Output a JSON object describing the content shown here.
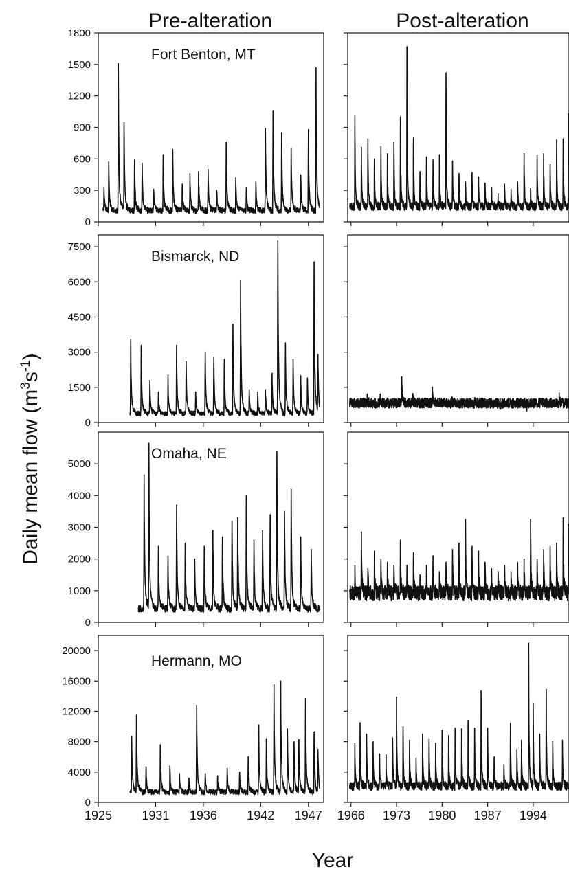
{
  "chart_data": {
    "type": "line",
    "column_titles": [
      "Pre-alteration",
      "Post-alteration"
    ],
    "xlabel": "Year",
    "ylabel": "Daily mean flow (m3s-1)",
    "ylabel_parts": {
      "main": "Daily mean flow (m",
      "sup1": "3",
      "mid": "s",
      "sup2": "-1",
      "end": ")"
    },
    "x_axes": {
      "pre": {
        "range": [
          1925,
          1948.6
        ],
        "ticks": [
          1925,
          1931,
          1936,
          1942,
          1947
        ],
        "tick_labels": [
          "1925",
          "1931",
          "1936",
          "1942",
          "1947"
        ]
      },
      "post": {
        "range": [
          1965.5,
          1999.5
        ],
        "ticks": [
          1966,
          1973,
          1980,
          1987,
          1994
        ],
        "tick_labels": [
          "1966",
          "1973",
          "1980",
          "1987",
          "1994"
        ]
      }
    },
    "panels": [
      {
        "station": "Fort Benton, MT",
        "ylim": [
          0,
          1800
        ],
        "y_ticks": [
          0,
          300,
          600,
          900,
          1200,
          1500,
          1800
        ],
        "y_tick_labels": [
          "0",
          "300",
          "600",
          "900",
          "1200",
          "1500",
          "1800"
        ],
        "pre": {
          "start": 1925.5,
          "end": 1948.2,
          "base": 110,
          "peaks": [
            [
              1925.6,
              330
            ],
            [
              1926.1,
              570
            ],
            [
              1927.1,
              1510
            ],
            [
              1927.7,
              950
            ],
            [
              1928.8,
              590
            ],
            [
              1929.6,
              560
            ],
            [
              1930.8,
              310
            ],
            [
              1931.8,
              640
            ],
            [
              1932.8,
              690
            ],
            [
              1933.8,
              360
            ],
            [
              1934.6,
              460
            ],
            [
              1935.5,
              480
            ],
            [
              1936.5,
              500
            ],
            [
              1937.4,
              300
            ],
            [
              1938.4,
              760
            ],
            [
              1939.4,
              420
            ],
            [
              1940.5,
              330
            ],
            [
              1941.5,
              380
            ],
            [
              1942.5,
              890
            ],
            [
              1943.3,
              1060
            ],
            [
              1944.2,
              850
            ],
            [
              1945.2,
              700
            ],
            [
              1946.2,
              450
            ],
            [
              1947.0,
              880
            ],
            [
              1947.8,
              1470
            ]
          ]
        },
        "post": {
          "start": 1965.8,
          "end": 1999.5,
          "base": 150,
          "peaks": [
            [
              1966.6,
              1010
            ],
            [
              1967.6,
              710
            ],
            [
              1968.6,
              790
            ],
            [
              1969.6,
              600
            ],
            [
              1970.6,
              720
            ],
            [
              1971.6,
              650
            ],
            [
              1972.6,
              760
            ],
            [
              1973.6,
              1000
            ],
            [
              1974.6,
              1670
            ],
            [
              1975.6,
              800
            ],
            [
              1976.6,
              480
            ],
            [
              1977.6,
              620
            ],
            [
              1978.6,
              590
            ],
            [
              1979.6,
              640
            ],
            [
              1980.6,
              1420
            ],
            [
              1981.6,
              580
            ],
            [
              1982.6,
              460
            ],
            [
              1983.6,
              380
            ],
            [
              1984.6,
              470
            ],
            [
              1985.6,
              430
            ],
            [
              1986.6,
              370
            ],
            [
              1987.6,
              330
            ],
            [
              1988.6,
              270
            ],
            [
              1989.6,
              360
            ],
            [
              1990.6,
              310
            ],
            [
              1991.6,
              380
            ],
            [
              1992.6,
              650
            ],
            [
              1993.6,
              320
            ],
            [
              1994.6,
              640
            ],
            [
              1995.6,
              650
            ],
            [
              1996.6,
              550
            ],
            [
              1997.6,
              780
            ],
            [
              1998.6,
              790
            ],
            [
              1999.4,
              1030
            ]
          ]
        }
      },
      {
        "station": "Bismarck, ND",
        "ylim": [
          0,
          8000
        ],
        "y_ticks": [
          0,
          1500,
          3000,
          4500,
          6000,
          7500
        ],
        "y_tick_labels": [
          "0",
          "1500",
          "3000",
          "4500",
          "6000",
          "7500"
        ],
        "pre": {
          "start": 1928.3,
          "end": 1948.2,
          "base": 400,
          "peaks": [
            [
              1928.4,
              3550
            ],
            [
              1929.5,
              3300
            ],
            [
              1930.4,
              1800
            ],
            [
              1931.3,
              1300
            ],
            [
              1932.3,
              2000
            ],
            [
              1933.2,
              3300
            ],
            [
              1934.2,
              2600
            ],
            [
              1935.2,
              1300
            ],
            [
              1936.2,
              3000
            ],
            [
              1937.1,
              2800
            ],
            [
              1938.2,
              2700
            ],
            [
              1939.1,
              4200
            ],
            [
              1939.9,
              6050
            ],
            [
              1940.8,
              1400
            ],
            [
              1941.7,
              1300
            ],
            [
              1942.5,
              1400
            ],
            [
              1943.2,
              2100
            ],
            [
              1943.8,
              7750
            ],
            [
              1944.6,
              3400
            ],
            [
              1945.4,
              2700
            ],
            [
              1946.2,
              2000
            ],
            [
              1946.9,
              1900
            ],
            [
              1947.6,
              6850
            ],
            [
              1948.0,
              2900
            ]
          ]
        },
        "post": {
          "start": 1965.8,
          "end": 1999.5,
          "base": 850,
          "peaks": [
            [
              1968.5,
              1100
            ],
            [
              1970.5,
              1200
            ],
            [
              1973.8,
              1950
            ],
            [
              1975.5,
              1150
            ],
            [
              1978.5,
              1500
            ],
            [
              1981.5,
              950
            ],
            [
              1985.0,
              1000
            ],
            [
              1989.0,
              800
            ],
            [
              1993.0,
              700
            ],
            [
              1998.0,
              1200
            ]
          ]
        }
      },
      {
        "station": "Omaha, NE",
        "ylim": [
          0,
          6000
        ],
        "y_ticks": [
          0,
          1000,
          2000,
          3000,
          4000,
          5000
        ],
        "y_tick_labels": [
          "0",
          "1000",
          "2000",
          "3000",
          "4000",
          "5000"
        ],
        "pre": {
          "start": 1929.2,
          "end": 1948.2,
          "base": 450,
          "peaks": [
            [
              1929.8,
              4650
            ],
            [
              1930.3,
              5650
            ],
            [
              1931.3,
              2400
            ],
            [
              1932.3,
              2100
            ],
            [
              1933.2,
              3700
            ],
            [
              1934.1,
              2500
            ],
            [
              1935.1,
              2000
            ],
            [
              1936.1,
              2400
            ],
            [
              1937.0,
              2900
            ],
            [
              1938.0,
              2700
            ],
            [
              1939.0,
              3200
            ],
            [
              1939.6,
              3300
            ],
            [
              1940.5,
              4000
            ],
            [
              1941.3,
              2600
            ],
            [
              1942.2,
              2900
            ],
            [
              1943.0,
              3400
            ],
            [
              1943.7,
              5400
            ],
            [
              1944.5,
              3500
            ],
            [
              1945.2,
              4200
            ],
            [
              1946.2,
              2700
            ],
            [
              1947.3,
              2300
            ]
          ]
        },
        "post": {
          "start": 1965.8,
          "end": 1999.5,
          "base": 950,
          "peaks": [
            [
              1966.6,
              1800
            ],
            [
              1967.6,
              2850
            ],
            [
              1968.6,
              1700
            ],
            [
              1969.6,
              2250
            ],
            [
              1970.6,
              2000
            ],
            [
              1971.6,
              1900
            ],
            [
              1972.6,
              1800
            ],
            [
              1973.6,
              2600
            ],
            [
              1974.6,
              1800
            ],
            [
              1975.6,
              2200
            ],
            [
              1976.6,
              1500
            ],
            [
              1977.6,
              1800
            ],
            [
              1978.6,
              2100
            ],
            [
              1979.6,
              1600
            ],
            [
              1980.6,
              1900
            ],
            [
              1981.6,
              2300
            ],
            [
              1982.6,
              2500
            ],
            [
              1983.6,
              3250
            ],
            [
              1984.6,
              2400
            ],
            [
              1985.6,
              2250
            ],
            [
              1986.6,
              1900
            ],
            [
              1987.6,
              1700
            ],
            [
              1988.6,
              1600
            ],
            [
              1989.6,
              1800
            ],
            [
              1990.6,
              1600
            ],
            [
              1991.6,
              1900
            ],
            [
              1992.6,
              2000
            ],
            [
              1993.6,
              3250
            ],
            [
              1994.6,
              2000
            ],
            [
              1995.6,
              2300
            ],
            [
              1996.6,
              2400
            ],
            [
              1997.6,
              2500
            ],
            [
              1998.6,
              3300
            ],
            [
              1999.4,
              3100
            ]
          ]
        }
      },
      {
        "station": "Hermann, MO",
        "ylim": [
          0,
          22000
        ],
        "y_ticks": [
          0,
          4000,
          8000,
          12000,
          16000,
          20000
        ],
        "y_tick_labels": [
          "0",
          "4000",
          "8000",
          "12000",
          "16000",
          "20000"
        ],
        "pre": {
          "start": 1928.3,
          "end": 1948.2,
          "base": 1400,
          "peaks": [
            [
              1928.5,
              8700
            ],
            [
              1929.0,
              11500
            ],
            [
              1930.0,
              4700
            ],
            [
              1931.5,
              7600
            ],
            [
              1932.5,
              4800
            ],
            [
              1933.5,
              3800
            ],
            [
              1934.5,
              3200
            ],
            [
              1935.3,
              12800
            ],
            [
              1936.2,
              3800
            ],
            [
              1937.5,
              3500
            ],
            [
              1938.5,
              4500
            ],
            [
              1939.8,
              4000
            ],
            [
              1940.7,
              6000
            ],
            [
              1941.8,
              10200
            ],
            [
              1942.6,
              8400
            ],
            [
              1943.4,
              15500
            ],
            [
              1944.1,
              16000
            ],
            [
              1944.8,
              9700
            ],
            [
              1945.5,
              8000
            ],
            [
              1946.0,
              8300
            ],
            [
              1946.7,
              13700
            ],
            [
              1947.6,
              9300
            ],
            [
              1948.0,
              7000
            ]
          ]
        },
        "post": {
          "start": 1965.8,
          "end": 1999.5,
          "base": 2200,
          "peaks": [
            [
              1966.6,
              7800
            ],
            [
              1967.4,
              10500
            ],
            [
              1968.4,
              9000
            ],
            [
              1969.4,
              8000
            ],
            [
              1970.4,
              6400
            ],
            [
              1971.4,
              6000
            ],
            [
              1972.4,
              8500
            ],
            [
              1973.0,
              13900
            ],
            [
              1974.0,
              10000
            ],
            [
              1975.0,
              8200
            ],
            [
              1976.0,
              5800
            ],
            [
              1977.0,
              9000
            ],
            [
              1978.0,
              8400
            ],
            [
              1979.0,
              7800
            ],
            [
              1980.0,
              9500
            ],
            [
              1981.0,
              8800
            ],
            [
              1982.0,
              9800
            ],
            [
              1983.0,
              9700
            ],
            [
              1984.0,
              10800
            ],
            [
              1985.0,
              9800
            ],
            [
              1986.0,
              14700
            ],
            [
              1987.0,
              9800
            ],
            [
              1988.0,
              6000
            ],
            [
              1989.5,
              5000
            ],
            [
              1990.5,
              10400
            ],
            [
              1991.5,
              7000
            ],
            [
              1992.2,
              8200
            ],
            [
              1993.3,
              21000
            ],
            [
              1994.0,
              13000
            ],
            [
              1995.0,
              9000
            ],
            [
              1996.0,
              14900
            ],
            [
              1997.0,
              8000
            ],
            [
              1998.5,
              8200
            ]
          ]
        }
      }
    ]
  }
}
